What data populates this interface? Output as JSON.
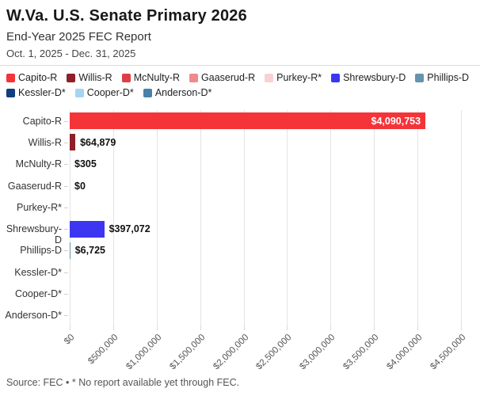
{
  "header": {
    "title": "W.Va. U.S. Senate Primary 2026",
    "subtitle": "End-Year 2025 FEC Report",
    "date_range": "Oct. 1, 2025 - Dec. 31, 2025"
  },
  "legend": [
    {
      "label": "Capito-R",
      "color": "#f43438"
    },
    {
      "label": "Willis-R",
      "color": "#8f2027"
    },
    {
      "label": "McNulty-R",
      "color": "#e03e44"
    },
    {
      "label": "Gaaserud-R",
      "color": "#f08a8c"
    },
    {
      "label": "Purkey-R*",
      "color": "#fad1d2"
    },
    {
      "label": "Shrewsbury-D",
      "color": "#3c35f1"
    },
    {
      "label": "Phillips-D",
      "color": "#6793ae"
    },
    {
      "label": "Kessler-D*",
      "color": "#113e7e"
    },
    {
      "label": "Cooper-D*",
      "color": "#a3d5f3"
    },
    {
      "label": "Anderson-D*",
      "color": "#4a81ab"
    }
  ],
  "chart_data": {
    "type": "bar",
    "orientation": "horizontal",
    "title": "W.Va. U.S. Senate Primary 2026",
    "subtitle": "End-Year 2025 FEC Report",
    "period": "Oct. 1, 2025 - Dec. 31, 2025",
    "categories": [
      "Capito-R",
      "Willis-R",
      "McNulty-R",
      "Gaaserud-R",
      "Purkey-R*",
      "Shrewsbury-D",
      "Phillips-D",
      "Kessler-D*",
      "Cooper-D*",
      "Anderson-D*"
    ],
    "values": [
      4090753,
      64879,
      305,
      0,
      null,
      397072,
      6725,
      null,
      null,
      null
    ],
    "value_labels": [
      "$4,090,753",
      "$64,879",
      "$305",
      "$0",
      "",
      "$397,072",
      "$6,725",
      "",
      "",
      ""
    ],
    "colors": [
      "#f43438",
      "#8f2027",
      "#e03e44",
      "#f08a8c",
      "#fad1d2",
      "#3c35f1",
      "#6793ae",
      "#113e7e",
      "#a3d5f3",
      "#4a81ab"
    ],
    "xlim": [
      0,
      4500000
    ],
    "x_ticks": [
      "$0",
      "$500,000",
      "$1,000,000",
      "$1,500,000",
      "$2,000,000",
      "$2,500,000",
      "$3,000,000",
      "$3,500,000",
      "$4,000,000",
      "$4,500,000"
    ],
    "x_tick_values": [
      0,
      500000,
      1000000,
      1500000,
      2000000,
      2500000,
      3000000,
      3500000,
      4000000,
      4500000
    ],
    "grid": true,
    "legend_position": "top",
    "note": "* No report available yet through FEC"
  },
  "footer": {
    "source": "Source: FEC • * No report available yet through FEC."
  }
}
